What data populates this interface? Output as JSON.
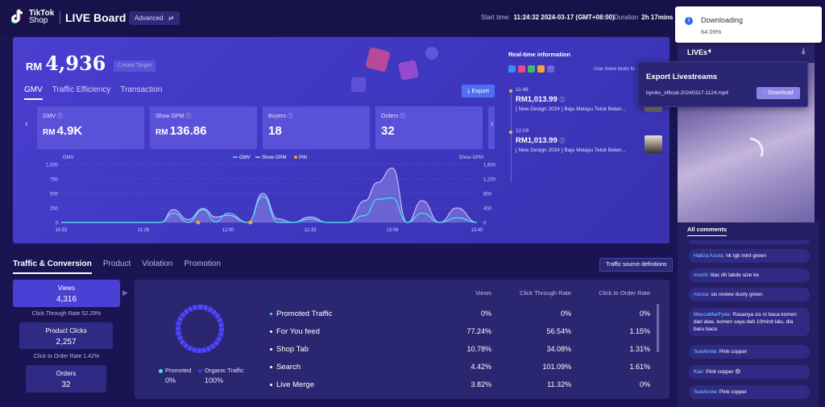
{
  "header": {
    "logo_line1": "TikTok",
    "logo_line2": "Shop",
    "title": "LIVE Board",
    "mode_label": "Advanced",
    "mode_icon": "swap-icon",
    "start_label": "Start time:",
    "start_value": "11:24:32 2024-03-17 (GMT+08:00)",
    "duration_label": "Duration",
    "duration_value": "2h 17mins"
  },
  "summary": {
    "currency": "RM",
    "gmv_total": "4,936",
    "create_target": "Create Target",
    "tabs": [
      "GMV",
      "Traffic Efficiency",
      "Transaction"
    ],
    "export_label": "Export",
    "cards": [
      {
        "label": "GMV",
        "prefix": "RM",
        "value": "4.9K"
      },
      {
        "label": "Show GPM",
        "prefix": "RM",
        "value": "136.86"
      },
      {
        "label": "Buyers",
        "prefix": "",
        "value": "18"
      },
      {
        "label": "Orders",
        "prefix": "",
        "value": "32"
      }
    ]
  },
  "realtime": {
    "title": "Real-time information",
    "use_more": "Use more tools to",
    "items": [
      {
        "time": "11:48",
        "amount": "RM1,013.99",
        "desc": "[ New Design 2024 ] Baju Melayu Teluk Belan..."
      },
      {
        "time": "12:09",
        "amount": "RM1,013.99",
        "desc": "[ New Design 2024 ] Baju Melayu Teluk Belan..."
      }
    ]
  },
  "chart_data": {
    "type": "line",
    "left_axis_label": "GMV",
    "right_axis_label": "Show GPM",
    "legend": [
      "GMV",
      "Show GPM",
      "PIN"
    ],
    "legend_position": "top-center",
    "x_ticks": [
      "10:53",
      "11:26",
      "12:00",
      "12:33",
      "13:06",
      "13:40"
    ],
    "y_left_ticks": [
      "1,000",
      "750",
      "500",
      "250",
      "0"
    ],
    "y_right_ticks": [
      "1,600",
      "1,200",
      "800",
      "400",
      "0"
    ],
    "ylim_left": [
      0,
      1000
    ],
    "ylim_right": [
      0,
      1600
    ],
    "grid": true,
    "series": [
      {
        "name": "GMV",
        "color": "#3ee6e6",
        "x": [
          "10:53",
          "11:00",
          "11:10",
          "11:20",
          "11:26",
          "11:33",
          "11:38",
          "11:44",
          "11:50",
          "11:55",
          "12:00",
          "12:08",
          "12:14",
          "12:20",
          "12:26",
          "12:33",
          "12:40",
          "12:48",
          "12:55",
          "13:00",
          "13:06",
          "13:12",
          "13:18",
          "13:25",
          "13:32",
          "13:40"
        ],
        "y": [
          0,
          0,
          0,
          0,
          0,
          0,
          160,
          0,
          220,
          10,
          160,
          0,
          450,
          0,
          0,
          60,
          0,
          0,
          120,
          400,
          420,
          0,
          160,
          0,
          80,
          0
        ]
      },
      {
        "name": "Show GPM",
        "color": "#c7b8ff",
        "x": [
          "10:53",
          "11:00",
          "11:10",
          "11:20",
          "11:26",
          "11:33",
          "11:38",
          "11:44",
          "11:50",
          "11:55",
          "12:00",
          "12:08",
          "12:14",
          "12:20",
          "12:26",
          "12:33",
          "12:40",
          "12:48",
          "12:55",
          "13:00",
          "13:06",
          "13:12",
          "13:18",
          "13:25",
          "13:32",
          "13:40"
        ],
        "y": [
          0,
          0,
          0,
          0,
          0,
          0,
          350,
          80,
          380,
          150,
          200,
          0,
          800,
          100,
          0,
          150,
          0,
          0,
          600,
          1100,
          1500,
          0,
          600,
          0,
          400,
          0
        ]
      }
    ],
    "pins": [
      "11:48",
      "12:09"
    ]
  },
  "traffic": {
    "tabs": [
      "Traffic & Conversion",
      "Product",
      "Violation",
      "Promotion"
    ],
    "definitions_button": "Traffic source definitions",
    "funnel": [
      {
        "label": "Views",
        "value": "4,316"
      },
      {
        "label": "Product Clicks",
        "value": "2,257"
      },
      {
        "label": "Orders",
        "value": "32"
      }
    ],
    "rates": [
      "Click Through Rate  52.29%",
      "Click to Order Rate  1.42%"
    ],
    "donut_legend": [
      {
        "label": "Promoted",
        "value": "0%",
        "color": "#3ee6e6"
      },
      {
        "label": "Organic Traffic",
        "value": "100%",
        "color": "#3b35e8"
      }
    ],
    "table": {
      "headers": [
        "",
        "Views",
        "Click Through Rate",
        "Click to Order Rate"
      ],
      "rows": [
        [
          "Promoted Traffic",
          "0%",
          "0%",
          "0%"
        ],
        [
          "For You feed",
          "77.24%",
          "56.54%",
          "1.15%"
        ],
        [
          "Shop Tab",
          "10.78%",
          "34.08%",
          "1.31%"
        ],
        [
          "Search",
          "4.42%",
          "101.09%",
          "1.61%"
        ],
        [
          "Live Merge",
          "3.82%",
          "11.32%",
          "0%"
        ]
      ]
    }
  },
  "lives": {
    "title": "LIVEs",
    "comments_title": "All comments",
    "comments": [
      {
        "user": "Haliza Azura:",
        "text": "nk tgk mint green"
      },
      {
        "user": "mochi:",
        "text": "lilac dh takde size ke"
      },
      {
        "user": "noriza:",
        "text": "sis review dusty green"
      },
      {
        "user": "MeccaMarFyda:",
        "text": "Rasanya sis ni baca komen dari atas, komen saya dah 10minit lalu, dia baru baca"
      },
      {
        "user": "SueAnnie:",
        "text": "Pink copper"
      },
      {
        "user": "Kari:",
        "text": "Pink copper 😄"
      },
      {
        "user": "SueAnnie:",
        "text": "Pink copper"
      }
    ]
  },
  "toast": {
    "title": "Downloading",
    "progress": "64.09%"
  },
  "export_popup": {
    "title": "Export Livestreams",
    "filename": "byniks_official-20240317-1124.mp4",
    "button": "Download"
  }
}
